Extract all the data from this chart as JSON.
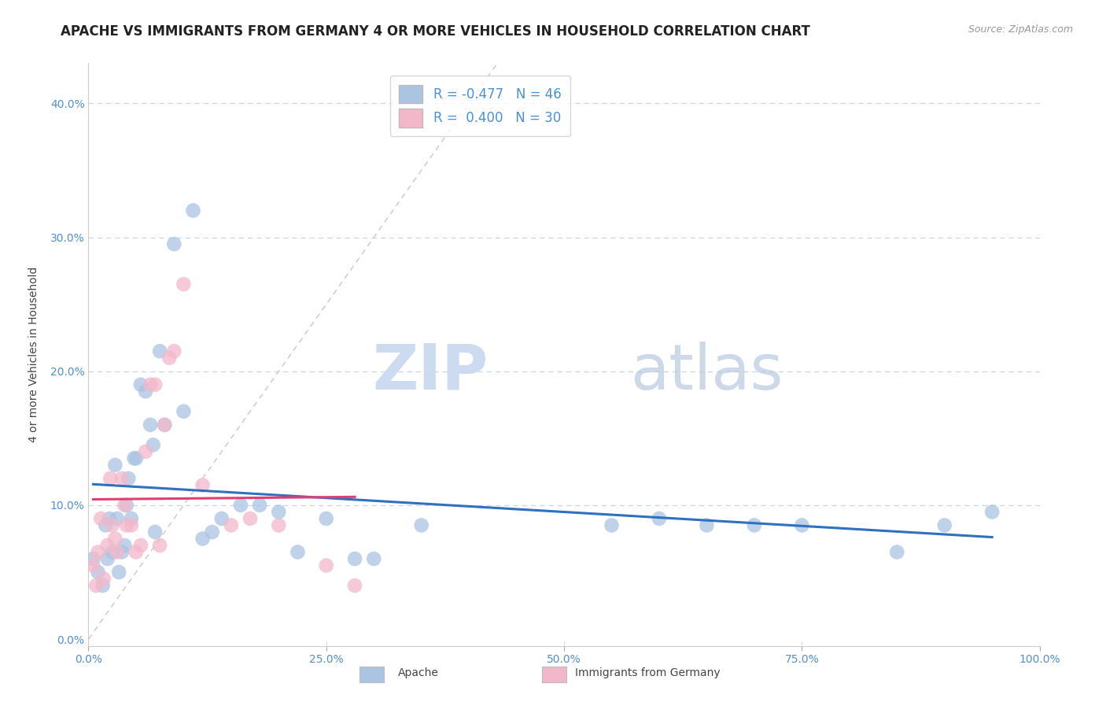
{
  "title": "APACHE VS IMMIGRANTS FROM GERMANY 4 OR MORE VEHICLES IN HOUSEHOLD CORRELATION CHART",
  "source": "Source: ZipAtlas.com",
  "ylabel": "4 or more Vehicles in Household",
  "xlim": [
    0.0,
    1.0
  ],
  "ylim": [
    -0.005,
    0.43
  ],
  "xtick_vals": [
    0.0,
    0.25,
    0.5,
    0.75,
    1.0
  ],
  "xtick_labels": [
    "0.0%",
    "25.0%",
    "50.0%",
    "75.0%",
    "100.0%"
  ],
  "ytick_vals": [
    0.0,
    0.1,
    0.2,
    0.3,
    0.4
  ],
  "ytick_labels": [
    "0.0%",
    "10.0%",
    "20.0%",
    "30.0%",
    "40.0%"
  ],
  "legend_R_apache": "-0.477",
  "legend_N_apache": "46",
  "legend_R_germany": "0.400",
  "legend_N_germany": "30",
  "apache_color": "#aac4e2",
  "germany_color": "#f2b8ca",
  "apache_line_color": "#3070c0",
  "germany_line_color": "#e04070",
  "apache_scatter_x": [
    0.005,
    0.01,
    0.015,
    0.018,
    0.02,
    0.022,
    0.025,
    0.028,
    0.03,
    0.032,
    0.035,
    0.038,
    0.04,
    0.042,
    0.045,
    0.048,
    0.05,
    0.055,
    0.06,
    0.065,
    0.068,
    0.07,
    0.075,
    0.08,
    0.09,
    0.1,
    0.11,
    0.12,
    0.13,
    0.14,
    0.16,
    0.18,
    0.2,
    0.22,
    0.25,
    0.28,
    0.3,
    0.35,
    0.55,
    0.6,
    0.65,
    0.7,
    0.75,
    0.85,
    0.9,
    0.95
  ],
  "apache_scatter_y": [
    0.06,
    0.05,
    0.04,
    0.085,
    0.06,
    0.09,
    0.065,
    0.13,
    0.09,
    0.05,
    0.065,
    0.07,
    0.1,
    0.12,
    0.09,
    0.135,
    0.135,
    0.19,
    0.185,
    0.16,
    0.145,
    0.08,
    0.215,
    0.16,
    0.295,
    0.17,
    0.32,
    0.075,
    0.08,
    0.09,
    0.1,
    0.1,
    0.095,
    0.065,
    0.09,
    0.06,
    0.06,
    0.085,
    0.085,
    0.09,
    0.085,
    0.085,
    0.085,
    0.065,
    0.085,
    0.095
  ],
  "germany_scatter_x": [
    0.005,
    0.008,
    0.01,
    0.013,
    0.016,
    0.02,
    0.023,
    0.025,
    0.028,
    0.03,
    0.035,
    0.038,
    0.04,
    0.045,
    0.05,
    0.055,
    0.06,
    0.065,
    0.07,
    0.075,
    0.08,
    0.085,
    0.09,
    0.1,
    0.12,
    0.15,
    0.17,
    0.2,
    0.25,
    0.28
  ],
  "germany_scatter_y": [
    0.055,
    0.04,
    0.065,
    0.09,
    0.045,
    0.07,
    0.12,
    0.085,
    0.075,
    0.065,
    0.12,
    0.1,
    0.085,
    0.085,
    0.065,
    0.07,
    0.14,
    0.19,
    0.19,
    0.07,
    0.16,
    0.21,
    0.215,
    0.265,
    0.115,
    0.085,
    0.09,
    0.085,
    0.055,
    0.04
  ],
  "diag_line_color": "#c8c8c8",
  "background_color": "#ffffff",
  "grid_color": "#c8d4e8",
  "title_fontsize": 12,
  "axis_fontsize": 10,
  "tick_fontsize": 10,
  "legend_fontsize": 12,
  "watermark_zip_color": "#c8d8f0",
  "watermark_atlas_color": "#b8c8e0",
  "apache_line_x": [
    0.005,
    0.95
  ],
  "germany_line_x": [
    0.005,
    0.28
  ]
}
